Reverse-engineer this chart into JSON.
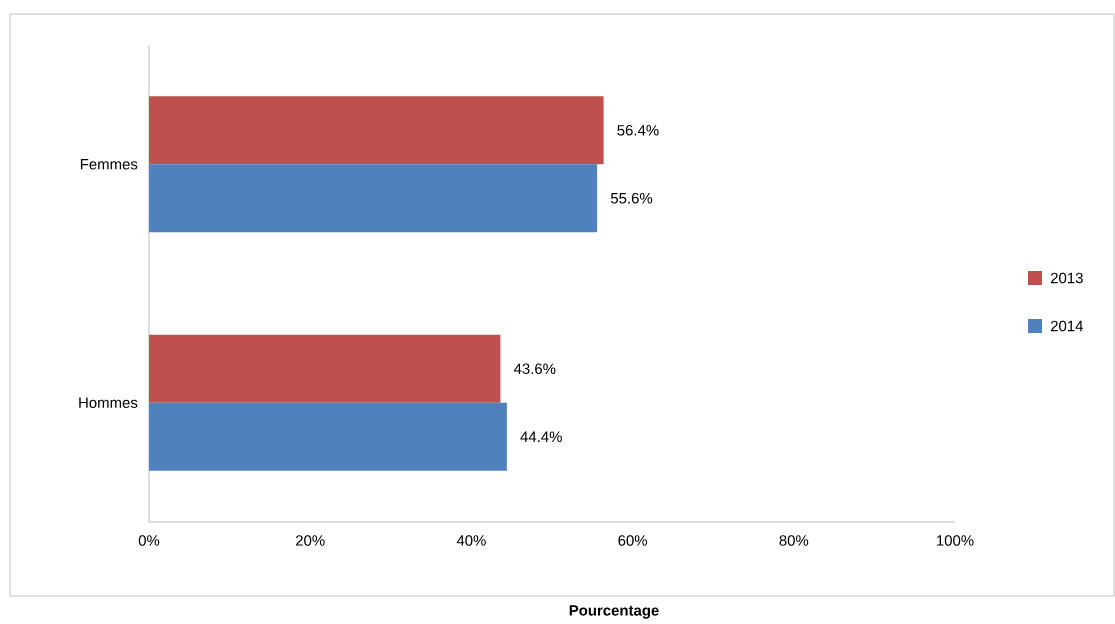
{
  "chart_data": {
    "type": "bar",
    "orientation": "horizontal",
    "xlabel": "Pourcentage",
    "categories": [
      "Femmes",
      "Hommes"
    ],
    "series": [
      {
        "name": "2013",
        "color": "#c0504d",
        "values": [
          56.4,
          43.6
        ],
        "value_labels": [
          "56.4%",
          "43.6%"
        ]
      },
      {
        "name": "2014",
        "color": "#4f81bd",
        "values": [
          55.6,
          44.4
        ],
        "value_labels": [
          "55.6%",
          "44.4%"
        ]
      }
    ],
    "xlim": [
      0,
      100
    ],
    "xticks": [
      {
        "value": 0,
        "label": "0%"
      },
      {
        "value": 20,
        "label": "20%"
      },
      {
        "value": 40,
        "label": "40%"
      },
      {
        "value": 60,
        "label": "60%"
      },
      {
        "value": 80,
        "label": "80%"
      },
      {
        "value": 100,
        "label": "100%"
      }
    ],
    "legend": "right"
  }
}
